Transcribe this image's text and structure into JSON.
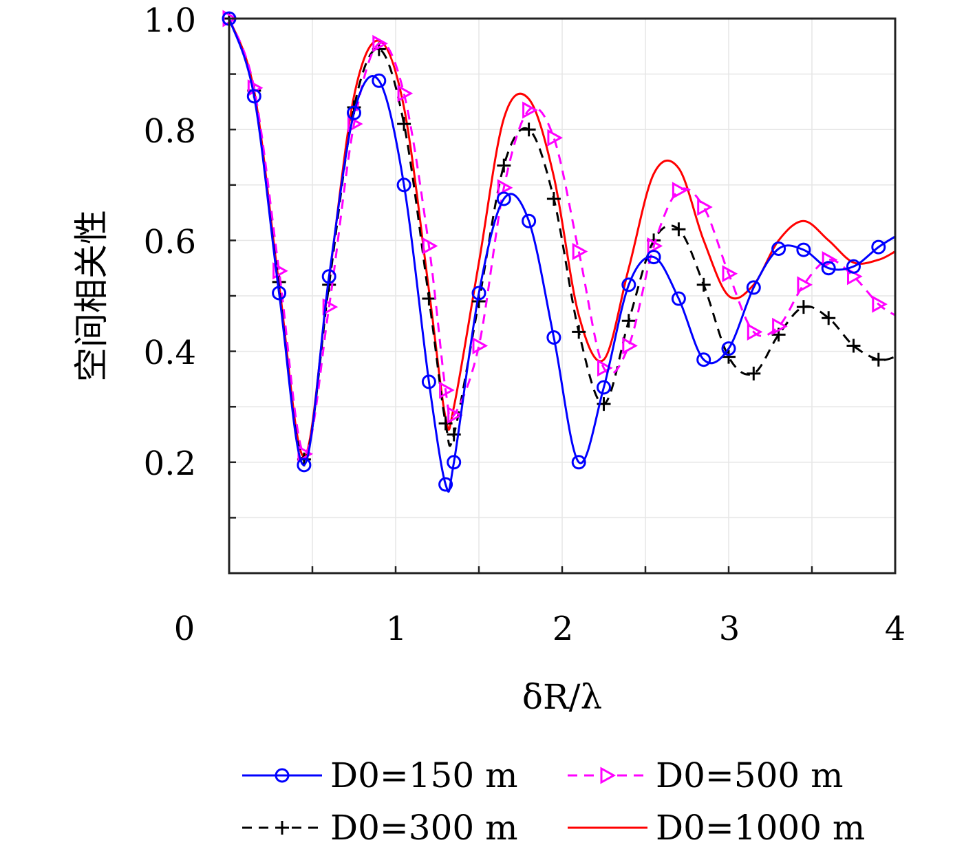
{
  "chart_data": {
    "type": "line",
    "title": "",
    "xlabel": "δR/λ",
    "ylabel": "空间相关性",
    "xlim": [
      0,
      4
    ],
    "ylim": [
      0,
      1.0
    ],
    "grid": true,
    "legend_position": "bottom",
    "x_ticks": [
      "0",
      "1",
      "2",
      "3",
      "4"
    ],
    "y_ticks": [
      "0.2",
      "0.4",
      "0.6",
      "0.8",
      "1.0"
    ],
    "series": [
      {
        "name": "D0=150 m",
        "color": "#0000ff",
        "line_style": "solid",
        "marker": "circle",
        "x": [
          0.0,
          0.15,
          0.3,
          0.45,
          0.6,
          0.75,
          0.9,
          1.05,
          1.2,
          1.3,
          1.35,
          1.5,
          1.65,
          1.8,
          1.95,
          2.1,
          2.25,
          2.4,
          2.55,
          2.7,
          2.85,
          3.0,
          3.15,
          3.3,
          3.45,
          3.6,
          3.75,
          3.9,
          4.0
        ],
        "y": [
          1.0,
          0.86,
          0.505,
          0.195,
          0.535,
          0.83,
          0.888,
          0.7,
          0.345,
          0.16,
          0.2,
          0.505,
          0.675,
          0.635,
          0.425,
          0.2,
          0.335,
          0.52,
          0.57,
          0.495,
          0.385,
          0.405,
          0.515,
          0.585,
          0.583,
          0.55,
          0.553,
          0.588,
          0.607
        ]
      },
      {
        "name": "D0=300 m",
        "color": "#000000",
        "line_style": "dashed",
        "marker": "plus",
        "x": [
          0.0,
          0.15,
          0.3,
          0.45,
          0.6,
          0.75,
          0.9,
          1.05,
          1.2,
          1.3,
          1.35,
          1.5,
          1.65,
          1.8,
          1.95,
          2.1,
          2.25,
          2.4,
          2.55,
          2.7,
          2.85,
          3.0,
          3.15,
          3.3,
          3.45,
          3.6,
          3.75,
          3.9,
          4.0
        ],
        "y": [
          1.0,
          0.87,
          0.525,
          0.205,
          0.52,
          0.84,
          0.945,
          0.81,
          0.495,
          0.27,
          0.25,
          0.49,
          0.735,
          0.8,
          0.675,
          0.435,
          0.305,
          0.455,
          0.6,
          0.62,
          0.52,
          0.39,
          0.36,
          0.43,
          0.48,
          0.46,
          0.41,
          0.385,
          0.39
        ]
      },
      {
        "name": "D0=500 m",
        "color": "#ff00ff",
        "line_style": "dashed",
        "marker": "triangle-right",
        "x": [
          0.0,
          0.15,
          0.3,
          0.45,
          0.6,
          0.75,
          0.9,
          1.05,
          1.2,
          1.3,
          1.35,
          1.5,
          1.65,
          1.8,
          1.95,
          2.1,
          2.25,
          2.4,
          2.55,
          2.7,
          2.85,
          3.0,
          3.15,
          3.3,
          3.45,
          3.6,
          3.75,
          3.9,
          4.0
        ],
        "y": [
          1.0,
          0.875,
          0.545,
          0.215,
          0.48,
          0.81,
          0.955,
          0.865,
          0.59,
          0.33,
          0.285,
          0.41,
          0.695,
          0.835,
          0.785,
          0.58,
          0.37,
          0.41,
          0.59,
          0.69,
          0.66,
          0.54,
          0.435,
          0.445,
          0.52,
          0.565,
          0.535,
          0.485,
          0.465
        ]
      },
      {
        "name": "D0=1000 m",
        "color": "#ff0000",
        "line_style": "solid",
        "marker": "none",
        "x": [
          0.0,
          0.15,
          0.3,
          0.45,
          0.6,
          0.75,
          0.9,
          1.05,
          1.2,
          1.3,
          1.35,
          1.5,
          1.65,
          1.8,
          1.95,
          2.1,
          2.25,
          2.4,
          2.55,
          2.7,
          2.85,
          3.0,
          3.15,
          3.3,
          3.45,
          3.6,
          3.75,
          3.9,
          4.0
        ],
        "y": [
          1.0,
          0.87,
          0.52,
          0.21,
          0.53,
          0.86,
          0.96,
          0.84,
          0.51,
          0.28,
          0.3,
          0.56,
          0.82,
          0.855,
          0.715,
          0.465,
          0.385,
          0.55,
          0.72,
          0.73,
          0.6,
          0.5,
          0.52,
          0.6,
          0.635,
          0.6,
          0.56,
          0.565,
          0.58
        ]
      }
    ]
  }
}
